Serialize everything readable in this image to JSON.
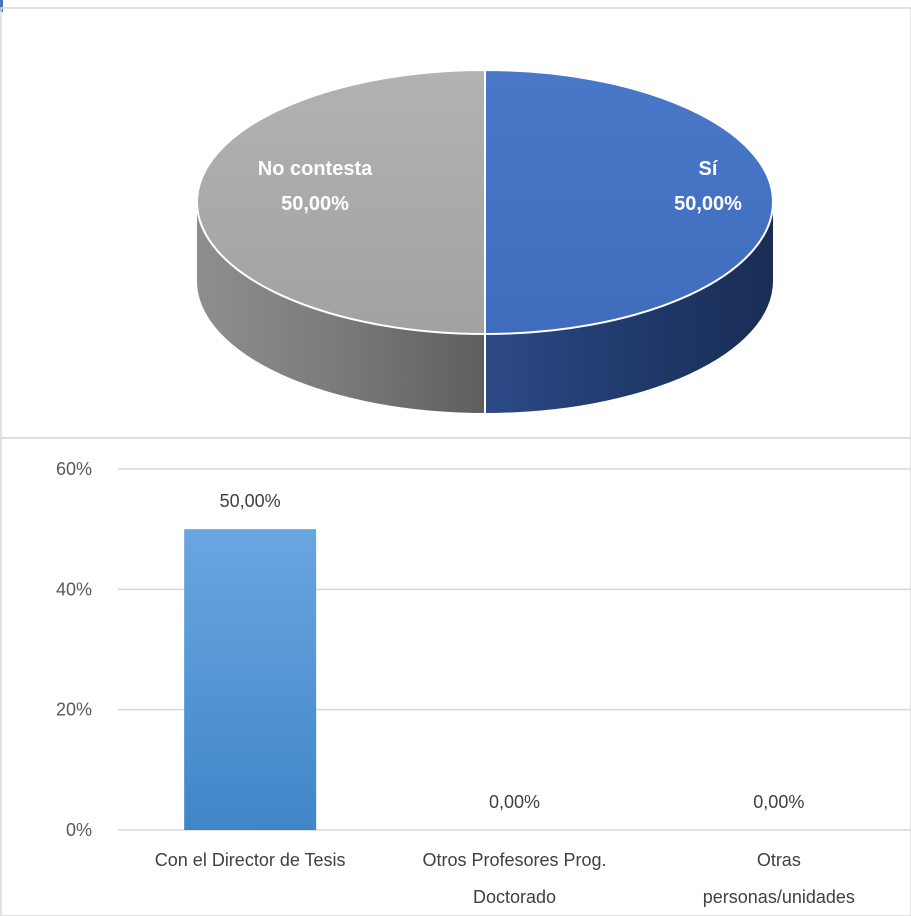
{
  "chart_data": [
    {
      "type": "pie",
      "style": "3d",
      "title": "",
      "slices": [
        {
          "label": "Sí",
          "value": 50.0,
          "value_label": "50,00%",
          "color": "#4472c4"
        },
        {
          "label": "No contesta",
          "value": 50.0,
          "value_label": "50,00%",
          "color": "#a5a5a5"
        }
      ]
    },
    {
      "type": "bar",
      "title": "",
      "xlabel": "",
      "ylabel": "",
      "categories": [
        [
          "Con el Director de Tesis"
        ],
        [
          "Otros Profesores Prog.",
          "Doctorado"
        ],
        [
          "Otras",
          "personas/unidades"
        ]
      ],
      "values": [
        50.0,
        0.0,
        0.0
      ],
      "value_labels": [
        "50,00%",
        "0,00%",
        "0,00%"
      ],
      "ylim": [
        0,
        60
      ],
      "yticks": [
        0,
        20,
        40,
        60
      ],
      "ytick_labels": [
        "0%",
        "20%",
        "40%",
        "60%"
      ],
      "grid": true,
      "bar_color": "#5b9bd5"
    }
  ]
}
